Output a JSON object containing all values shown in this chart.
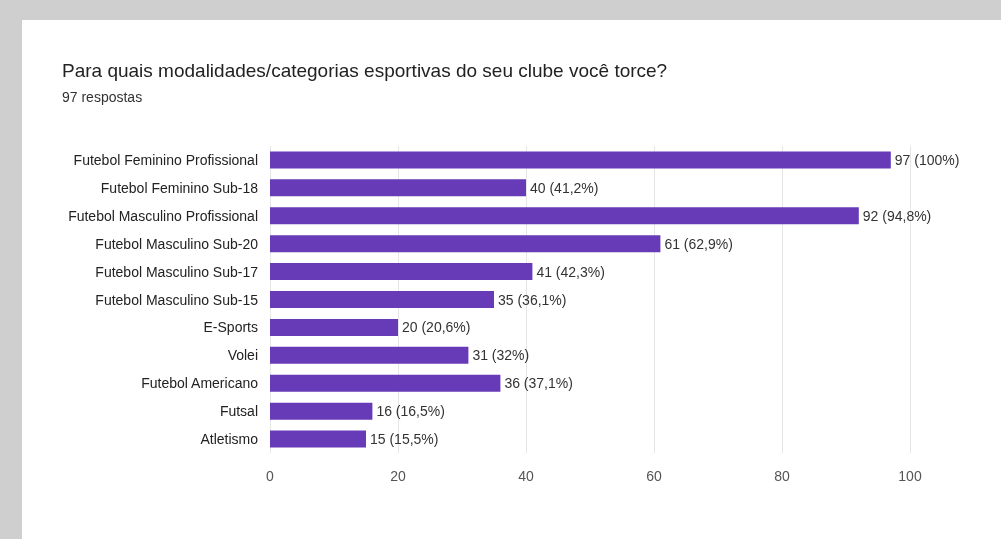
{
  "chart_data": {
    "type": "bar",
    "orientation": "horizontal",
    "title": "Para quais modalidades/categorias esportivas do seu clube você torce?",
    "subtitle": "97 respostas",
    "categories": [
      "Futebol Feminino Profissional",
      "Futebol Feminino Sub-18",
      "Futebol Masculino Profissional",
      "Futebol Masculino Sub-20",
      "Futebol Masculino Sub-17",
      "Futebol Masculino Sub-15",
      "E-Sports",
      "Volei",
      "Futebol Americano",
      "Futsal",
      "Atletismo"
    ],
    "values": [
      97,
      40,
      92,
      61,
      41,
      35,
      20,
      31,
      36,
      16,
      15
    ],
    "value_labels": [
      "97 (100%)",
      "40 (41,2%)",
      "92 (94,8%)",
      "61 (62,9%)",
      "41 (42,3%)",
      "35 (36,1%)",
      "20 (20,6%)",
      "31 (32%)",
      "36 (37,1%)",
      "16 (16,5%)",
      "15 (15,5%)"
    ],
    "color": "#673ab7",
    "xlim": [
      0,
      100
    ],
    "xticks": [
      0,
      20,
      40,
      60,
      80,
      100
    ],
    "grid": "x"
  }
}
